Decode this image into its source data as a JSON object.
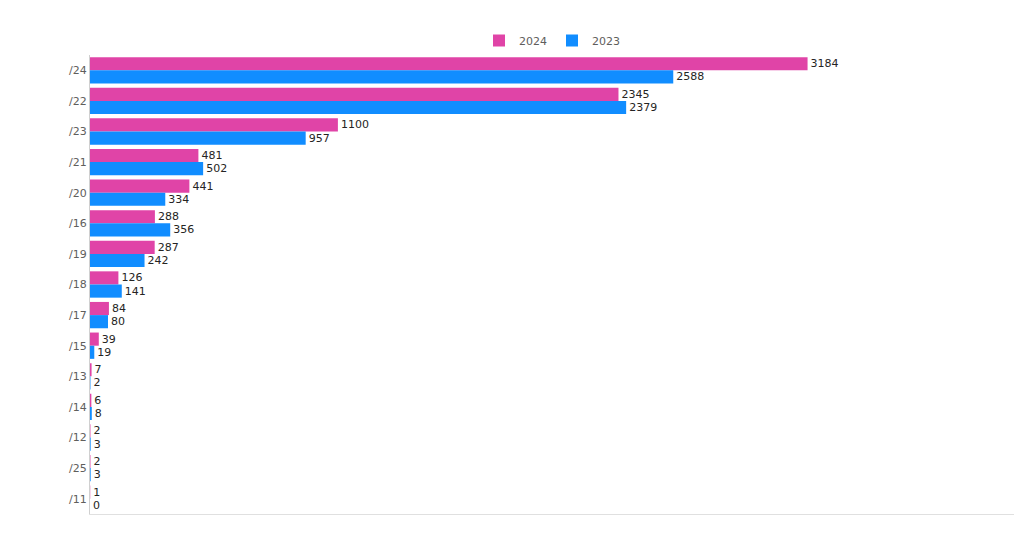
{
  "chart_data": {
    "type": "bar",
    "orientation": "horizontal",
    "categories": [
      "/24",
      "/22",
      "/23",
      "/21",
      "/20",
      "/16",
      "/19",
      "/18",
      "/17",
      "/15",
      "/13",
      "/14",
      "/12",
      "/25",
      "/11"
    ],
    "series": [
      {
        "name": "2024",
        "color": "#e044a7",
        "values": [
          3184,
          2345,
          1100,
          481,
          441,
          288,
          287,
          126,
          84,
          39,
          7,
          6,
          2,
          2,
          1
        ]
      },
      {
        "name": "2023",
        "color": "#118dff",
        "values": [
          2588,
          2379,
          957,
          502,
          334,
          356,
          242,
          141,
          80,
          19,
          2,
          8,
          3,
          3,
          0
        ]
      }
    ],
    "xlim": [
      0,
      4100
    ],
    "xticks": [],
    "grid": false,
    "legend": "top",
    "data_labels": true,
    "tick_labels": "y"
  }
}
